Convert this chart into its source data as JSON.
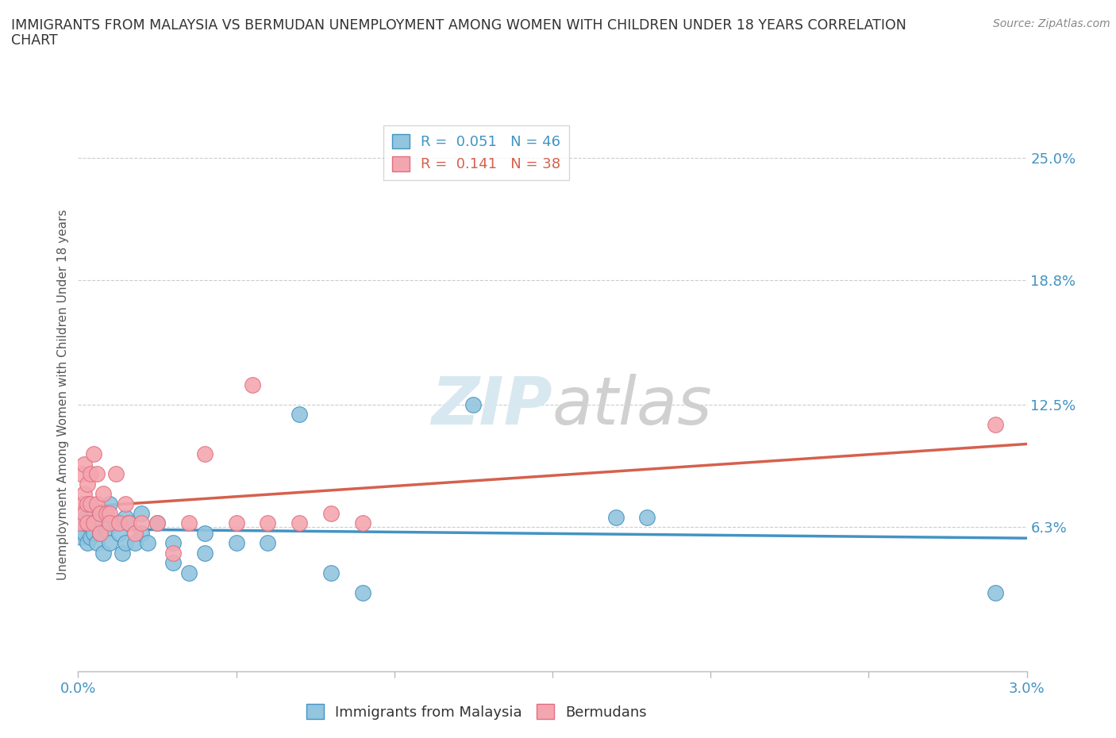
{
  "title_line1": "IMMIGRANTS FROM MALAYSIA VS BERMUDAN UNEMPLOYMENT AMONG WOMEN WITH CHILDREN UNDER 18 YEARS CORRELATION",
  "title_line2": "CHART",
  "source": "Source: ZipAtlas.com",
  "ylabel": "Unemployment Among Women with Children Under 18 years",
  "xlim": [
    0.0,
    0.03
  ],
  "ylim": [
    -0.01,
    0.27
  ],
  "yticks": [
    0.063,
    0.125,
    0.188,
    0.25
  ],
  "ytick_labels": [
    "6.3%",
    "12.5%",
    "18.8%",
    "25.0%"
  ],
  "xtick_positions": [
    0.0,
    0.005,
    0.01,
    0.015,
    0.02,
    0.025,
    0.03
  ],
  "xtick_labels": [
    "0.0%",
    "",
    "",
    "",
    "",
    "",
    "3.0%"
  ],
  "color_malaysia": "#92C5DE",
  "color_bermuda": "#F4A6B0",
  "color_malaysia_line": "#4393C3",
  "color_bermuda_line": "#D6604D",
  "background_color": "#FFFFFF",
  "malaysia_x": [
    5e-05,
    0.0001,
    0.0001,
    0.0002,
    0.0002,
    0.0003,
    0.0003,
    0.0004,
    0.0004,
    0.0004,
    0.0005,
    0.0005,
    0.0006,
    0.0006,
    0.0007,
    0.0007,
    0.0008,
    0.0008,
    0.0009,
    0.001,
    0.001,
    0.0012,
    0.0013,
    0.0014,
    0.0015,
    0.0015,
    0.0016,
    0.0018,
    0.002,
    0.002,
    0.0022,
    0.0025,
    0.003,
    0.003,
    0.0035,
    0.004,
    0.004,
    0.005,
    0.006,
    0.007,
    0.008,
    0.009,
    0.0125,
    0.017,
    0.018,
    0.029
  ],
  "malaysia_y": [
    0.062,
    0.058,
    0.07,
    0.06,
    0.065,
    0.055,
    0.075,
    0.065,
    0.058,
    0.068,
    0.072,
    0.06,
    0.065,
    0.055,
    0.07,
    0.06,
    0.065,
    0.05,
    0.062,
    0.075,
    0.055,
    0.065,
    0.06,
    0.05,
    0.068,
    0.055,
    0.065,
    0.055,
    0.07,
    0.06,
    0.055,
    0.065,
    0.045,
    0.055,
    0.04,
    0.06,
    0.05,
    0.055,
    0.055,
    0.12,
    0.04,
    0.03,
    0.125,
    0.068,
    0.068,
    0.03
  ],
  "bermuda_x": [
    5e-05,
    0.0001,
    0.0001,
    0.0002,
    0.0002,
    0.0002,
    0.0003,
    0.0003,
    0.0003,
    0.0004,
    0.0004,
    0.0005,
    0.0005,
    0.0006,
    0.0006,
    0.0007,
    0.0007,
    0.0008,
    0.0009,
    0.001,
    0.001,
    0.0012,
    0.0013,
    0.0015,
    0.0016,
    0.0018,
    0.002,
    0.0025,
    0.003,
    0.0035,
    0.004,
    0.005,
    0.0055,
    0.006,
    0.007,
    0.008,
    0.009,
    0.029
  ],
  "bermuda_y": [
    0.065,
    0.09,
    0.075,
    0.07,
    0.08,
    0.095,
    0.075,
    0.065,
    0.085,
    0.09,
    0.075,
    0.1,
    0.065,
    0.075,
    0.09,
    0.07,
    0.06,
    0.08,
    0.07,
    0.07,
    0.065,
    0.09,
    0.065,
    0.075,
    0.065,
    0.06,
    0.065,
    0.065,
    0.05,
    0.065,
    0.1,
    0.065,
    0.135,
    0.065,
    0.065,
    0.07,
    0.065,
    0.115
  ]
}
